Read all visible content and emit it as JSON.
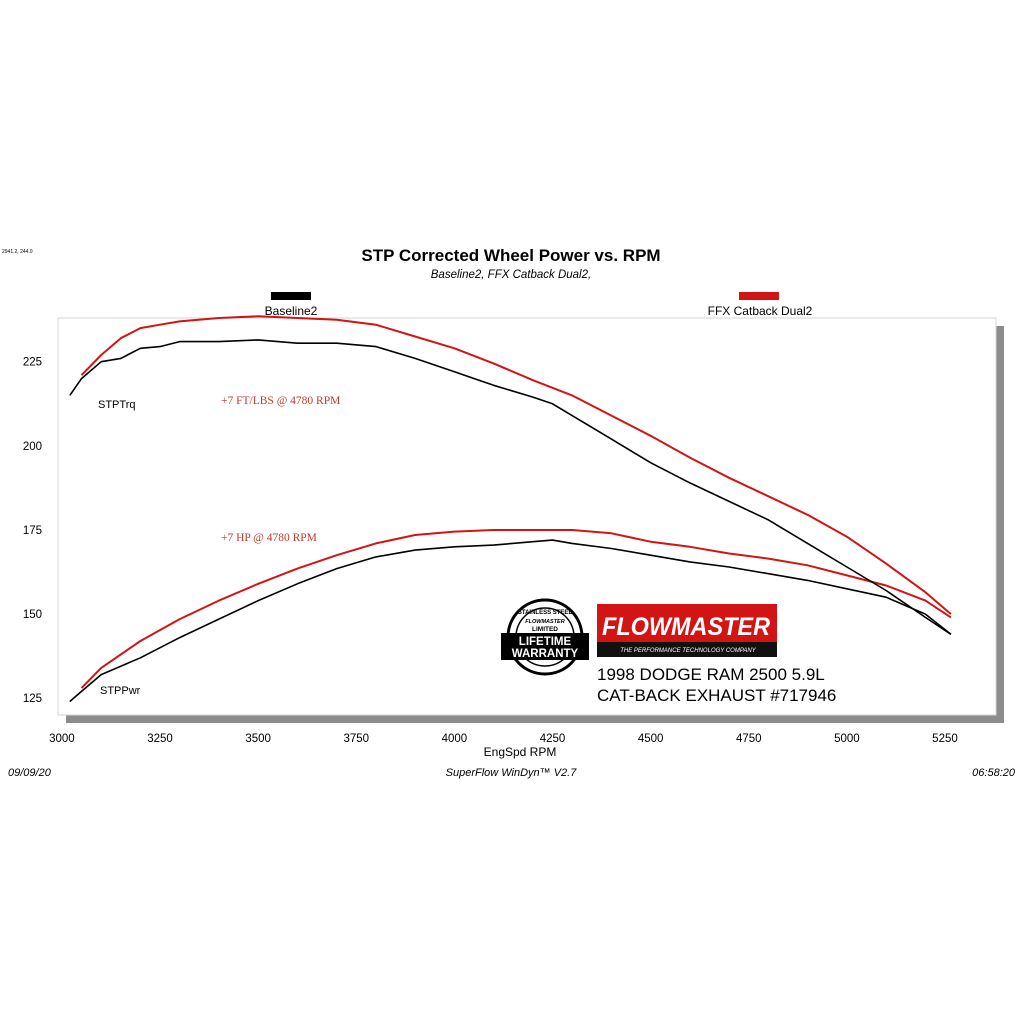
{
  "corner_note": "2941.2, 244.0",
  "footer": {
    "date": "09/09/20",
    "software": "SuperFlow WinDyn™ V2.7",
    "time": "06:58:20"
  },
  "colors": {
    "baseline": "#000000",
    "catback": "#d21414",
    "annotation": "#c0392b",
    "panel_shadow": "#8c8c8c"
  },
  "annotations": {
    "torque_gain": "+7 FT/LBS @ 4780 RPM",
    "hp_gain": "+7 HP @ 4780 RPM"
  },
  "logos": {
    "warranty": {
      "top": "STAINLESS STEEL",
      "brand": "FLOWMASTER",
      "middle": "LIMITED",
      "line1": "LIFETIME",
      "line2": "WARRANTY"
    },
    "brand": {
      "name": "FLOWMASTER",
      "tagline": "THE PERFORMANCE TECHNOLOGY COMPANY"
    }
  },
  "vehicle": {
    "line1": "1998 DODGE RAM 2500 5.9L",
    "line2": "CAT-BACK EXHAUST #717946"
  },
  "chart_data": {
    "type": "line",
    "title": "STP Corrected Wheel Power vs. RPM",
    "subtitle": "Baseline2, FFX Catback Dual2,",
    "xlabel": "EngSpd  RPM",
    "ylabel": "",
    "xlim": [
      2990,
      5380
    ],
    "ylim": [
      120,
      238
    ],
    "x_ticks": [
      3000,
      3250,
      3500,
      3750,
      4000,
      4250,
      4500,
      4750,
      5000,
      5250
    ],
    "y_ticks": [
      125,
      150,
      175,
      200,
      225
    ],
    "grid": false,
    "legend": [
      {
        "name": "Baseline2",
        "position": "top-left"
      },
      {
        "name": "FFX Catback Dual2",
        "position": "top-right"
      }
    ],
    "curve_labels": {
      "torque": "STPTrq",
      "power": "STPPwr"
    },
    "series": [
      {
        "name": "Baseline2",
        "quantity": "STPTrq",
        "x": [
          3020,
          3050,
          3100,
          3150,
          3200,
          3250,
          3300,
          3400,
          3500,
          3600,
          3700,
          3800,
          3900,
          4000,
          4100,
          4200,
          4250,
          4300,
          4400,
          4500,
          4600,
          4700,
          4800,
          4900,
          5000,
          5100,
          5200,
          5265
        ],
        "y": [
          215,
          220,
          225,
          226,
          229,
          229.5,
          231,
          231,
          231.5,
          230.5,
          230.5,
          229.5,
          226,
          222,
          218,
          214.5,
          212.5,
          209,
          202,
          195,
          189,
          183.5,
          178,
          171,
          164,
          157,
          149,
          144
        ]
      },
      {
        "name": "FFX Catback Dual2",
        "quantity": "STPTrq",
        "x": [
          3050,
          3100,
          3150,
          3200,
          3250,
          3300,
          3400,
          3500,
          3600,
          3700,
          3800,
          3900,
          4000,
          4100,
          4200,
          4300,
          4400,
          4500,
          4600,
          4700,
          4800,
          4900,
          5000,
          5100,
          5200,
          5265
        ],
        "y": [
          221,
          227,
          232,
          235,
          236,
          237,
          238,
          238.5,
          238,
          237.5,
          236,
          232.5,
          229,
          224.5,
          219.5,
          215,
          209,
          203,
          196.5,
          190.5,
          185,
          179.5,
          173,
          165,
          156.5,
          150
        ]
      },
      {
        "name": "Baseline2",
        "quantity": "STPPwr",
        "x": [
          3020,
          3050,
          3100,
          3200,
          3300,
          3400,
          3500,
          3600,
          3700,
          3800,
          3900,
          4000,
          4100,
          4200,
          4250,
          4300,
          4400,
          4500,
          4600,
          4700,
          4800,
          4900,
          5000,
          5100,
          5200,
          5265
        ],
        "y": [
          124,
          127,
          132,
          137,
          143,
          148.5,
          154,
          159,
          163.5,
          167,
          169,
          170,
          170.5,
          171.5,
          172,
          171,
          169.5,
          167.5,
          165.5,
          164,
          162,
          160,
          157.5,
          155,
          150,
          144
        ]
      },
      {
        "name": "FFX Catback Dual2",
        "quantity": "STPPwr",
        "x": [
          3050,
          3100,
          3200,
          3300,
          3400,
          3500,
          3600,
          3700,
          3800,
          3900,
          4000,
          4100,
          4200,
          4300,
          4400,
          4500,
          4600,
          4700,
          4800,
          4900,
          5000,
          5100,
          5200,
          5265
        ],
        "y": [
          128,
          134,
          142,
          148.5,
          154,
          159,
          163.5,
          167.5,
          171,
          173.5,
          174.5,
          175,
          175,
          175,
          174,
          171.5,
          170,
          168,
          166.5,
          164.5,
          161.5,
          158.5,
          154,
          149
        ]
      }
    ]
  }
}
